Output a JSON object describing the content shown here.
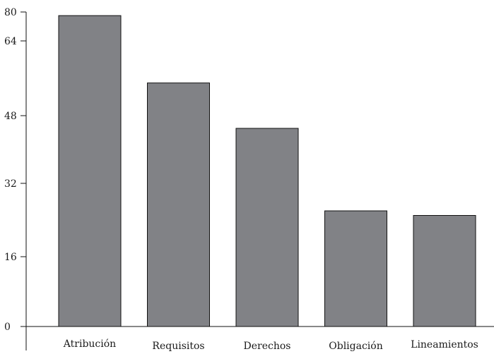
{
  "chart_data": {
    "type": "bar",
    "title": "",
    "xlabel": "",
    "ylabel": "",
    "categories": [
      "Atribución",
      "Requisitos",
      "Derechos",
      "Obligación",
      "Lineamientos"
    ],
    "values": [
      78,
      55,
      45,
      26,
      25
    ],
    "ylim": [
      0,
      80
    ],
    "yticks": [
      {
        "value": 0,
        "label": "0"
      },
      {
        "value": 16,
        "label": "16"
      },
      {
        "value": 32,
        "label": "32"
      },
      {
        "value": 48,
        "label": "48"
      },
      {
        "value": 64,
        "label": "64"
      },
      {
        "value": 80,
        "label": "80"
      }
    ],
    "grid": false,
    "bar_color": "#818286"
  }
}
